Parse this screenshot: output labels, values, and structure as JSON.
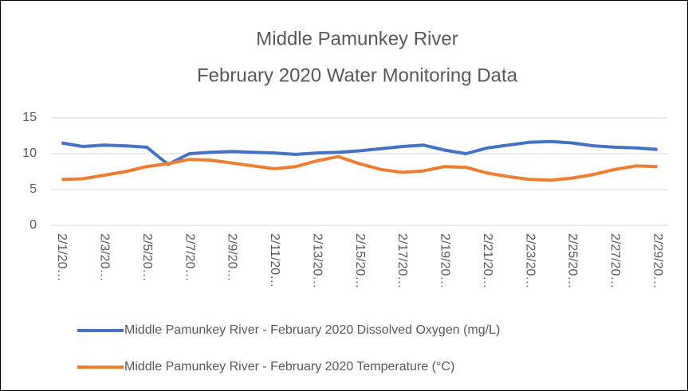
{
  "chart_data": {
    "type": "line",
    "title": [
      "Middle Pamunkey River",
      "February 2020 Water Monitoring Data"
    ],
    "categories": [
      "2/1/20…",
      null,
      "2/3/20…",
      null,
      "2/5/20…",
      null,
      "2/7/20…",
      null,
      "2/9/20…",
      null,
      "2/11/20…",
      null,
      "2/13/20…",
      null,
      "2/15/20…",
      null,
      "2/17/20…",
      null,
      "2/19/20…",
      null,
      "2/21/20…",
      null,
      "2/23/20…",
      null,
      "2/25/20…",
      null,
      "2/27/20…",
      null,
      "2/29/20…"
    ],
    "series": [
      {
        "name": "Middle Pamunkey River - February 2020 Dissolved Oxygen (mg/L)",
        "color": "#4472c4",
        "values": [
          11.5,
          11.0,
          11.2,
          11.1,
          10.9,
          8.5,
          10.0,
          10.2,
          10.3,
          10.2,
          10.1,
          9.9,
          10.1,
          10.2,
          10.4,
          10.7,
          11.0,
          11.2,
          10.5,
          10.0,
          10.8,
          11.2,
          11.6,
          11.7,
          11.5,
          11.1,
          10.9,
          10.8,
          10.6
        ]
      },
      {
        "name": "Middle Pamunkey River - February 2020 Temperature (°C)",
        "color": "#ed7d31",
        "values": [
          6.4,
          6.5,
          7.0,
          7.5,
          8.2,
          8.6,
          9.2,
          9.1,
          8.7,
          8.3,
          7.9,
          8.2,
          9.0,
          9.6,
          8.6,
          7.8,
          7.4,
          7.6,
          8.2,
          8.1,
          7.3,
          6.8,
          6.4,
          6.3,
          6.6,
          7.1,
          7.8,
          8.3,
          8.2
        ]
      }
    ],
    "ylim": [
      0,
      15
    ],
    "yticks": [
      0,
      5,
      10,
      15
    ],
    "grid": true,
    "legend": "bottom"
  }
}
